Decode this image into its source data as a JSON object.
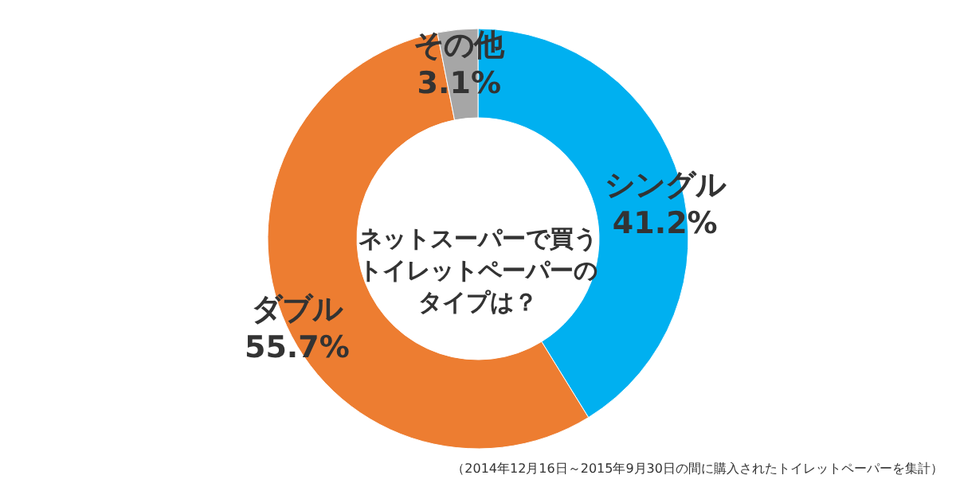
{
  "chart_data": {
    "type": "donut",
    "title": "ネットスーパーで買うトイレットペーパーのタイプは？",
    "categories": [
      "シングル",
      "ダブル",
      "その他"
    ],
    "values": [
      41.2,
      55.7,
      3.1
    ],
    "value_labels": [
      "41.2%",
      "55.7%",
      "3.1%"
    ],
    "colors": [
      "#00b0f0",
      "#ed7d31",
      "#a6a6a6"
    ],
    "annotations": [
      "（2014年12月16日～2015年9月30日の間に購入されたトイレットペーパーを集計）"
    ]
  }
}
